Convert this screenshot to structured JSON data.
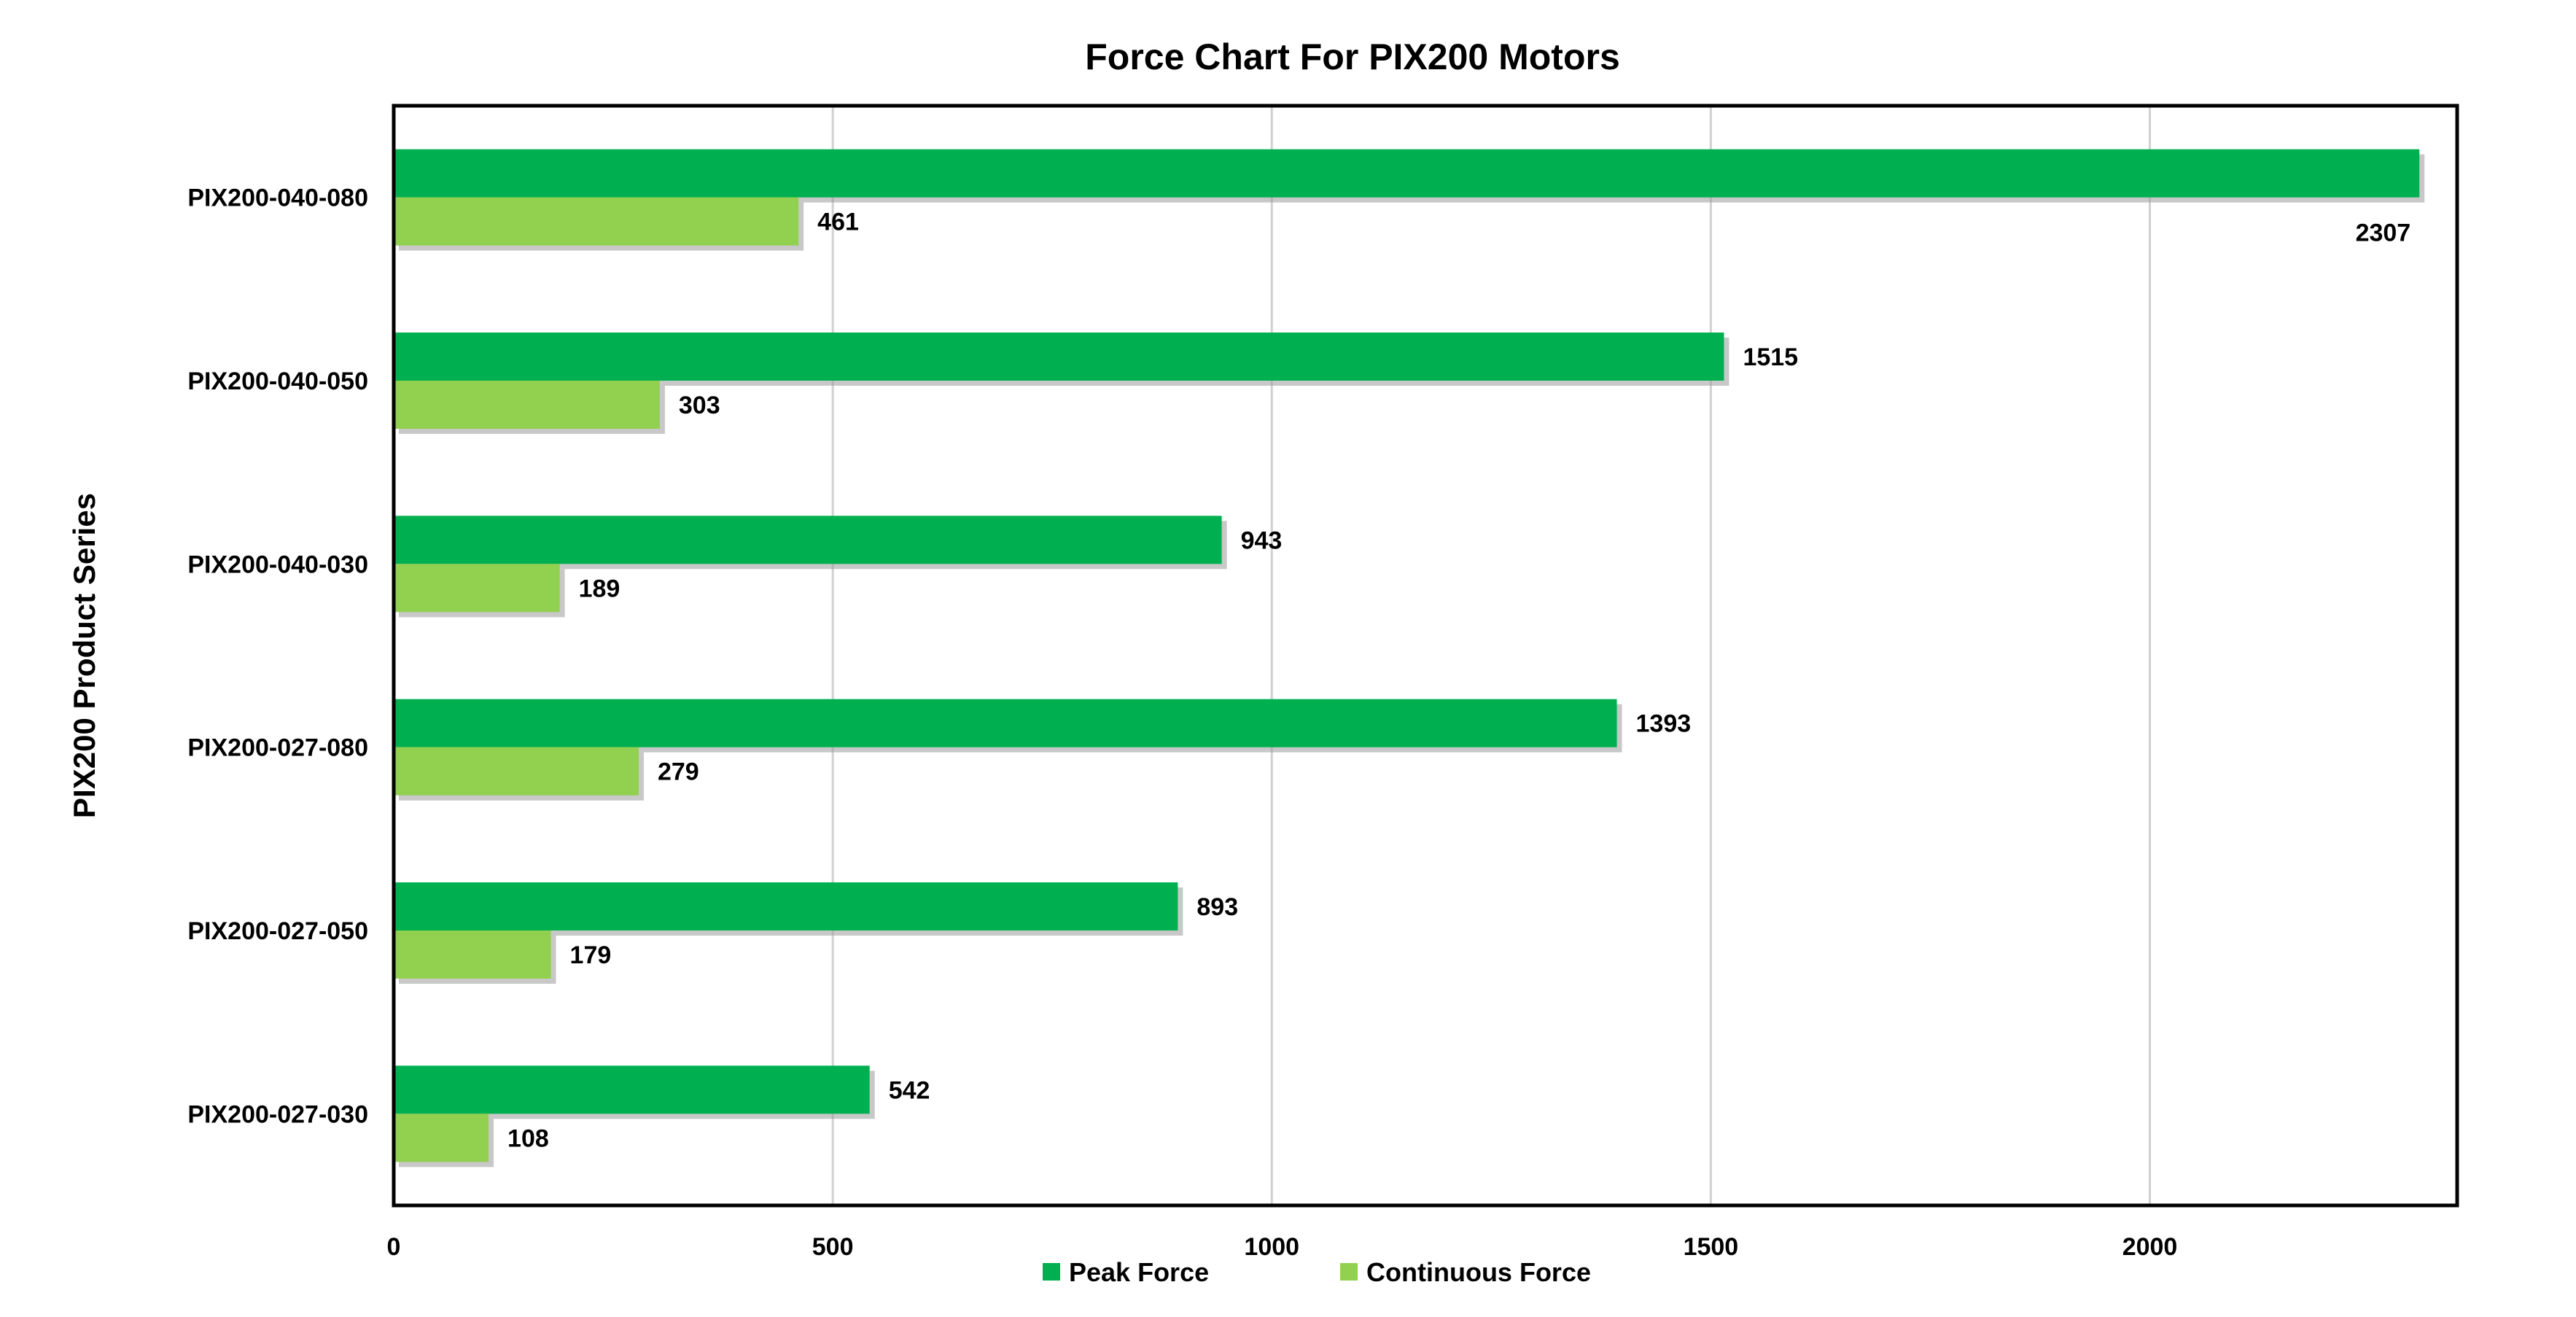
{
  "chart_data": {
    "type": "bar",
    "orientation": "horizontal",
    "title": "Force Chart For PIX200 Motors",
    "xlabel": "",
    "ylabel": "PIX200 Product Series",
    "categories": [
      "PIX200-040-080",
      "PIX200-040-050",
      "PIX200-040-030",
      "PIX200-027-080",
      "PIX200-027-050",
      "PIX200-027-030"
    ],
    "series": [
      {
        "name": "Peak Force",
        "color": "#00b050",
        "values": [
          2307,
          1515,
          943,
          1393,
          893,
          542
        ]
      },
      {
        "name": "Continuous Force",
        "color": "#92d050",
        "values": [
          461,
          303,
          189,
          279,
          179,
          108
        ]
      }
    ],
    "xlim": [
      0,
      2350
    ],
    "xticks": [
      "0",
      "500",
      "1000",
      "1500",
      "2000"
    ],
    "grid": true,
    "legend_position": "bottom"
  }
}
